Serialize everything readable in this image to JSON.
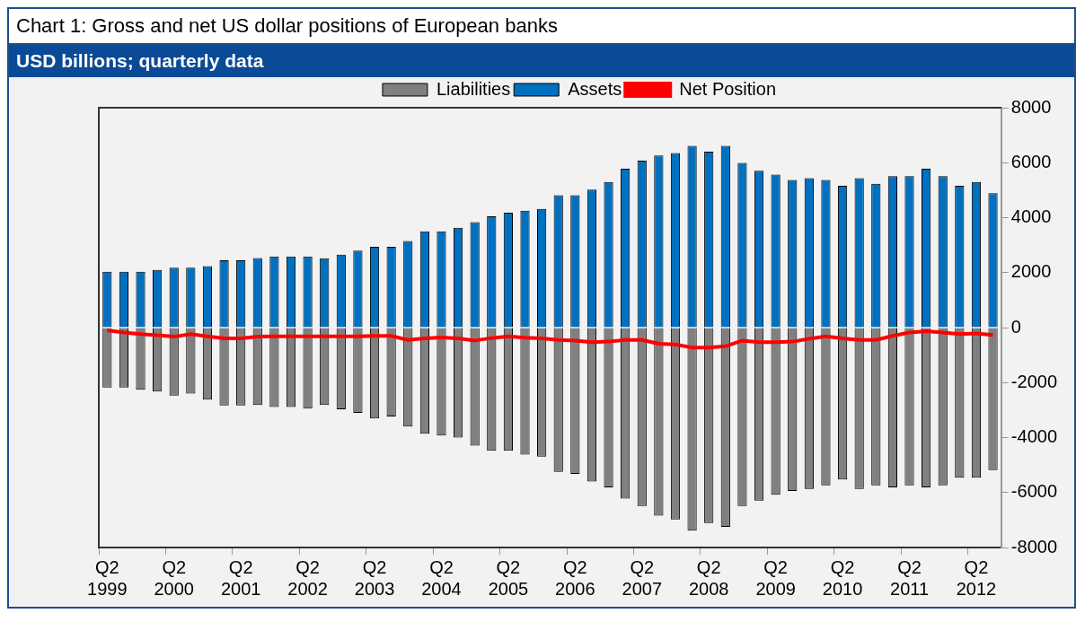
{
  "chart_data": {
    "type": "bar",
    "title": "Chart 1: Gross and net US dollar positions of European banks",
    "subtitle": "USD billions; quarterly data",
    "categories": [
      "Q2 1999",
      null,
      null,
      null,
      "Q2 2000",
      null,
      null,
      null,
      "Q2 2001",
      null,
      null,
      null,
      "Q2 2002",
      null,
      null,
      null,
      "Q2 2003",
      null,
      null,
      null,
      "Q2 2004",
      null,
      null,
      null,
      "Q2 2005",
      null,
      null,
      null,
      "Q2 2006",
      null,
      null,
      null,
      "Q2 2007",
      null,
      null,
      null,
      "Q2 2008",
      null,
      null,
      null,
      "Q2 2009",
      null,
      null,
      null,
      "Q2 2010",
      null,
      null,
      null,
      "Q2 2011",
      null,
      null,
      null,
      "Q2 2012",
      null
    ],
    "stacked": true,
    "series": [
      {
        "name": "Liabilities",
        "color": "#808080",
        "values": [
          -2180,
          -2180,
          -2260,
          -2330,
          -2470,
          -2400,
          -2620,
          -2830,
          -2830,
          -2820,
          -2890,
          -2890,
          -2950,
          -2820,
          -2970,
          -3100,
          -3310,
          -3230,
          -3600,
          -3860,
          -3930,
          -4000,
          -4290,
          -4480,
          -4480,
          -4620,
          -4690,
          -5250,
          -5320,
          -5600,
          -5810,
          -6220,
          -6490,
          -6840,
          -6980,
          -7390,
          -7110,
          -7250,
          -6490,
          -6290,
          -6080,
          -5940,
          -5870,
          -5740,
          -5530,
          -5870,
          -5740,
          -5810,
          -5740,
          -5810,
          -5740,
          -5460,
          -5460,
          -5180
        ]
      },
      {
        "name": "Assets",
        "color": "#0070c0",
        "values": [
          2030,
          2030,
          2030,
          2100,
          2180,
          2180,
          2240,
          2450,
          2450,
          2530,
          2590,
          2590,
          2590,
          2520,
          2650,
          2800,
          2940,
          2940,
          3150,
          3500,
          3500,
          3630,
          3840,
          4050,
          4180,
          4250,
          4320,
          4820,
          4820,
          5020,
          5300,
          5780,
          6070,
          6260,
          6350,
          6610,
          6400,
          6610,
          5990,
          5710,
          5570,
          5370,
          5440,
          5370,
          5160,
          5440,
          5230,
          5510,
          5510,
          5780,
          5510,
          5160,
          5300,
          4890
        ]
      },
      {
        "name": "Net Position",
        "type": "line",
        "color": "#ff0000",
        "marker": "none",
        "values": [
          -100,
          -180,
          -240,
          -280,
          -330,
          -240,
          -320,
          -390,
          -390,
          -330,
          -320,
          -320,
          -320,
          -320,
          -320,
          -320,
          -300,
          -300,
          -450,
          -390,
          -360,
          -390,
          -470,
          -380,
          -320,
          -370,
          -390,
          -450,
          -470,
          -530,
          -510,
          -450,
          -450,
          -590,
          -610,
          -730,
          -730,
          -680,
          -470,
          -530,
          -530,
          -510,
          -410,
          -320,
          -390,
          -450,
          -450,
          -300,
          -180,
          -130,
          -180,
          -240,
          -210,
          -270
        ]
      }
    ],
    "ylim": [
      -8000,
      8000
    ],
    "yticks": [
      -8000,
      -6000,
      -4000,
      -2000,
      0,
      2000,
      4000,
      6000,
      8000
    ],
    "grid": false,
    "legend": "top"
  }
}
